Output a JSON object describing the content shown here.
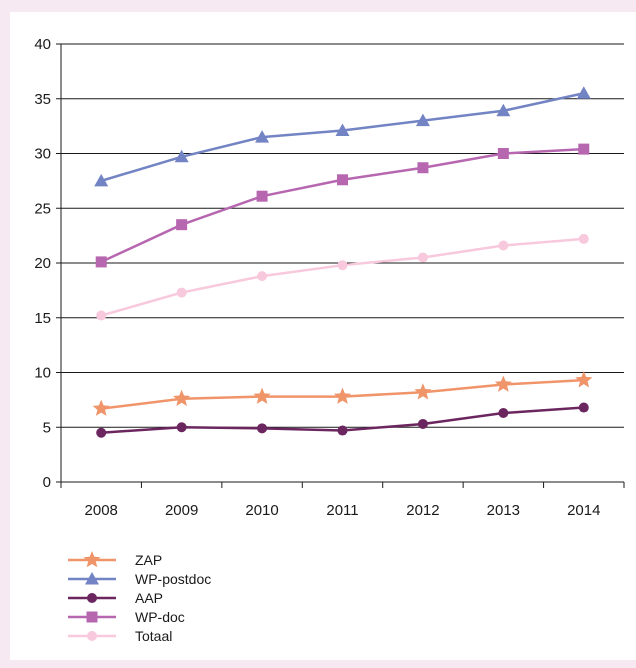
{
  "chart_data": {
    "type": "line",
    "categories": [
      "2008",
      "2009",
      "2010",
      "2011",
      "2012",
      "2013",
      "2014"
    ],
    "ylim": [
      0,
      40
    ],
    "yticks": [
      0,
      5,
      10,
      15,
      20,
      25,
      30,
      35,
      40
    ],
    "grid": "horizontal",
    "legend_position": "bottom-left",
    "series": [
      {
        "name": "ZAP",
        "color": "#f0946a",
        "marker": "star",
        "values": [
          6.7,
          7.6,
          7.8,
          7.8,
          8.2,
          8.9,
          9.3
        ]
      },
      {
        "name": "WP-postdoc",
        "color": "#7384c4",
        "marker": "triangle",
        "values": [
          27.5,
          29.7,
          31.5,
          32.1,
          33.0,
          33.9,
          35.5
        ]
      },
      {
        "name": "AAP",
        "color": "#6b2660",
        "marker": "circle",
        "values": [
          4.5,
          5.0,
          4.9,
          4.7,
          5.3,
          6.3,
          6.8
        ]
      },
      {
        "name": "WP-doc",
        "color": "#b667b0",
        "marker": "square",
        "values": [
          20.1,
          23.5,
          26.1,
          27.6,
          28.7,
          30.0,
          30.4
        ]
      },
      {
        "name": "Totaal",
        "color": "#f8c9dc",
        "marker": "circle",
        "values": [
          15.2,
          17.3,
          18.8,
          19.8,
          20.5,
          21.6,
          22.2
        ]
      }
    ]
  }
}
